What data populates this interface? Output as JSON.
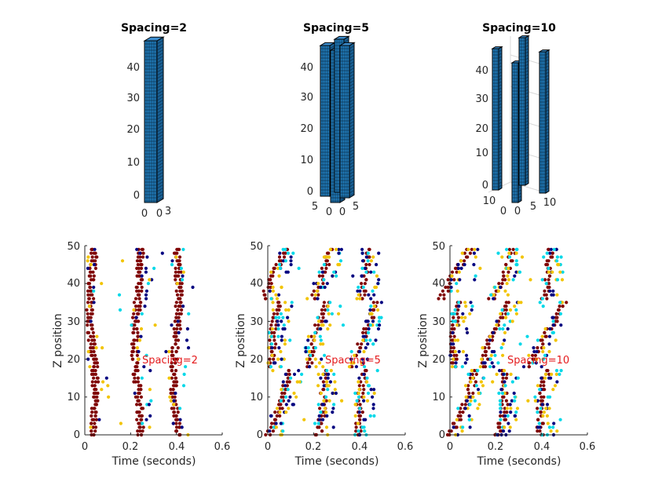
{
  "chart_data": [
    {
      "type": "scatter3d",
      "panel": "top-left",
      "title": "Spacing=2",
      "z_ticks": [
        "0",
        "10",
        "20",
        "30",
        "40"
      ],
      "base_ticks": [
        "0",
        "3"
      ],
      "zlim": [
        0,
        48
      ],
      "description_columns": 1
    },
    {
      "type": "scatter3d",
      "panel": "top-middle",
      "title": "Spacing=5",
      "z_ticks": [
        "0",
        "10",
        "20",
        "30",
        "40"
      ],
      "base_ticks": [
        "5",
        "0",
        "0",
        "5"
      ],
      "zlim": [
        0,
        48
      ]
    },
    {
      "type": "scatter3d",
      "panel": "top-right",
      "title": "Spacing=10",
      "z_ticks": [
        "0",
        "10",
        "20",
        "30",
        "40"
      ],
      "base_ticks": [
        "10",
        "0",
        "0",
        "5",
        "10"
      ],
      "zlim": [
        0,
        48
      ]
    },
    {
      "type": "scatter",
      "panel": "bottom-left",
      "annotation": "Spacing=2",
      "xlabel": "Time (seconds)",
      "ylabel": "Z position",
      "xlim": [
        0,
        0.6
      ],
      "ylim": [
        0,
        50
      ],
      "x_ticks": [
        "0",
        "0.2",
        "0.4",
        "0.6"
      ],
      "y_ticks": [
        "0",
        "10",
        "20",
        "30",
        "40",
        "50"
      ],
      "wave_centers": [
        0.035,
        0.23,
        0.4
      ],
      "lean": 0.2,
      "palette": [
        "#7f0000",
        "#f2c400",
        "#00d8e8",
        "#000080"
      ]
    },
    {
      "type": "scatter",
      "panel": "bottom-middle",
      "annotation": "Spacing=5",
      "xlabel": "Time (seconds)",
      "ylabel": "Z position",
      "xlim": [
        0,
        0.6
      ],
      "ylim": [
        0,
        50
      ],
      "x_ticks": [
        "0",
        "0.2",
        "0.4",
        "0.6"
      ],
      "y_ticks": [
        "0",
        "10",
        "20",
        "30",
        "40",
        "50"
      ],
      "wave_centers": [
        0.04,
        0.23,
        0.42
      ],
      "lean": 0.35,
      "palette": [
        "#7f0000",
        "#f2c400",
        "#00d8e8",
        "#000080"
      ]
    },
    {
      "type": "scatter",
      "panel": "bottom-right",
      "annotation": "Spacing=10",
      "xlabel": "Time (seconds)",
      "ylabel": "Z position",
      "xlim": [
        0,
        0.6
      ],
      "ylim": [
        0,
        50
      ],
      "x_ticks": [
        "0",
        "0.2",
        "0.4",
        "0.6"
      ],
      "y_ticks": [
        "0",
        "10",
        "20",
        "30",
        "40",
        "50"
      ],
      "wave_centers": [
        0.04,
        0.22,
        0.42
      ],
      "lean": 0.45,
      "palette": [
        "#7f0000",
        "#f2c400",
        "#00d8e8",
        "#000080"
      ]
    }
  ],
  "colors": {
    "column_fill": "#1f77b4",
    "column_edge": "#000000"
  }
}
